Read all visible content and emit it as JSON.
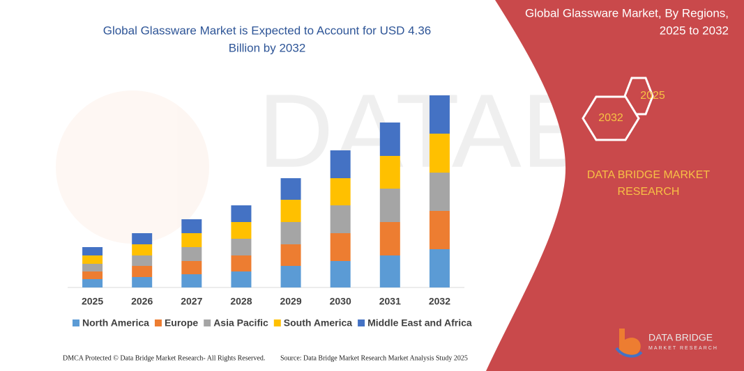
{
  "chart_data": {
    "type": "stacked_bar",
    "title": [
      "Global Glassware Market is Expected to Account for USD 4.36",
      "Billion by 2032"
    ],
    "categories": [
      "2025",
      "2026",
      "2027",
      "2028",
      "2029",
      "2030",
      "2031",
      "2032"
    ],
    "series": [
      {
        "name": "North America",
        "color": "#5b9bd5",
        "values": [
          12,
          15,
          19,
          23,
          31,
          38,
          46,
          55
        ]
      },
      {
        "name": "Europe",
        "color": "#ed7d31",
        "values": [
          11,
          16,
          19,
          23,
          31,
          40,
          48,
          55
        ]
      },
      {
        "name": "Asia Pacific",
        "color": "#a5a5a5",
        "values": [
          11,
          15,
          20,
          24,
          32,
          40,
          48,
          55
        ]
      },
      {
        "name": "South America",
        "color": "#ffc000",
        "values": [
          12,
          16,
          20,
          24,
          32,
          39,
          47,
          56
        ]
      },
      {
        "name": "Middle East and Africa",
        "color": "#4472c4",
        "values": [
          12,
          16,
          20,
          24,
          31,
          40,
          48,
          55
        ]
      }
    ],
    "legend": "bottom"
  },
  "side_panel": {
    "title": [
      "Global Glassware Market, By Regions,",
      "2025 to 2032"
    ],
    "hexagons": [
      "2025",
      "2032"
    ],
    "brand": [
      "DATA BRIDGE MARKET",
      "RESEARCH"
    ],
    "logo": [
      "DATA BRIDGE",
      "MARKET RESEARCH"
    ]
  },
  "footer": {
    "left": "DMCA Protected © Data Bridge Market Research- All Rights Reserved.",
    "right": "Source: Data Bridge Market Research  Market Analysis Study 2025"
  }
}
